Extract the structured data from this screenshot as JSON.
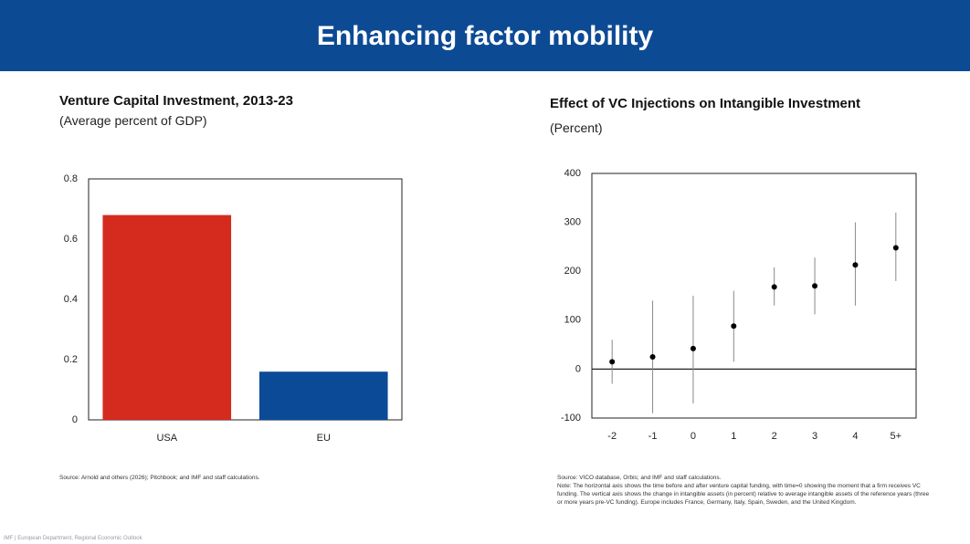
{
  "header": {
    "title": "Enhancing factor mobility"
  },
  "chart_data": [
    {
      "type": "bar",
      "title": "Venture Capital Investment, 2013-23",
      "subtitle": "(Average percent of GDP)",
      "categories": [
        "USA",
        "EU"
      ],
      "values": [
        0.68,
        0.16
      ],
      "colors": [
        "#d52b1e",
        "#0b4a97"
      ],
      "ylim": [
        0,
        0.8
      ],
      "yticks": [
        0,
        0.2,
        0.4,
        0.6,
        0.8
      ],
      "grid": false,
      "source": "Source: Arnold and others (2026); Pitchbook; and IMF and staff calculations."
    },
    {
      "type": "errorbar",
      "title": "Effect of VC Injections on Intangible Investment",
      "subtitle": "(Percent)",
      "categories": [
        "-2",
        "-1",
        "0",
        "1",
        "2",
        "3",
        "4",
        "5+"
      ],
      "values": [
        15,
        25,
        42,
        88,
        168,
        170,
        213,
        248
      ],
      "ci_low": [
        -30,
        -90,
        -70,
        15,
        130,
        112,
        130,
        180
      ],
      "ci_high": [
        60,
        140,
        150,
        160,
        208,
        228,
        300,
        320
      ],
      "color": "#000000",
      "error_color": "#888888",
      "ylim": [
        -100,
        400
      ],
      "yticks": [
        -100,
        0,
        100,
        200,
        300,
        400
      ],
      "grid": false,
      "source": "Source: VICO database, Orbis; and IMF and staff calculations.",
      "note": "Note: The horizontal axis shows the time before and after venture capital funding, with time=0 showing the moment that a firm receives VC funding. The vertical axis shows the change in intangible assets (in percent) relative to average intangible assets of the reference years (three or more years pre-VC funding). Europe includes France, Germany, Italy, Spain, Sweden, and the United Kingdom."
    }
  ],
  "footer": "IMF | European Department, Regional Economic Outlook"
}
